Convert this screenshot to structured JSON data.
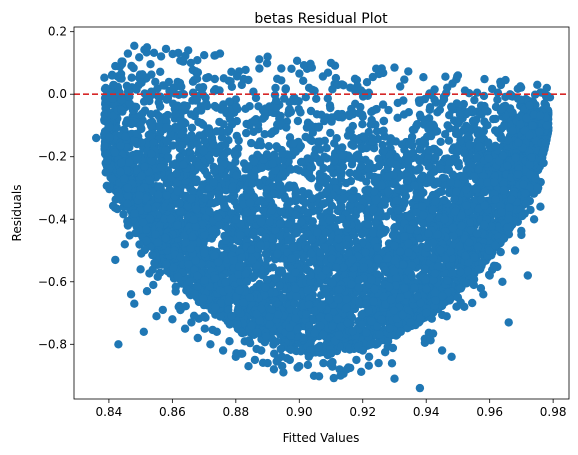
{
  "chart_data": {
    "type": "scatter",
    "title": "betas Residual Plot",
    "xlabel": "Fitted Values",
    "ylabel": "Residuals",
    "xlim": [
      0.829,
      0.985
    ],
    "ylim": [
      -0.975,
      0.215
    ],
    "xticks": [
      0.84,
      0.86,
      0.88,
      0.9,
      0.92,
      0.94,
      0.96,
      0.98
    ],
    "xtick_labels": [
      "0.84",
      "0.86",
      "0.88",
      "0.90",
      "0.92",
      "0.94",
      "0.96",
      "0.98"
    ],
    "yticks": [
      0.2,
      0.0,
      -0.2,
      -0.4,
      -0.6,
      -0.8
    ],
    "ytick_labels": [
      "0.2",
      "0.0",
      "−0.2",
      "−0.4",
      "−0.6",
      "−0.8"
    ],
    "grid": false,
    "legend": null,
    "reference_line": {
      "y": 0.0,
      "color": "#d62728",
      "style": "dashed"
    },
    "marker_color": "#1f77b4",
    "upper_envelope": [
      [
        0.837,
        0.06
      ],
      [
        0.843,
        0.1
      ],
      [
        0.85,
        0.148
      ],
      [
        0.86,
        0.14
      ],
      [
        0.9,
        0.11
      ],
      [
        0.94,
        0.07
      ],
      [
        0.97,
        0.035
      ],
      [
        0.978,
        0.02
      ]
    ],
    "series": [
      {
        "values": [
          [
            0.836,
            -0.14
          ],
          [
            0.839,
            0.02
          ],
          [
            0.841,
            0.06
          ],
          [
            0.842,
            0.09
          ],
          [
            0.844,
            0.05
          ],
          [
            0.846,
            0.13
          ],
          [
            0.848,
            0.155
          ],
          [
            0.852,
            0.15
          ],
          [
            0.858,
            0.145
          ],
          [
            0.865,
            0.14
          ],
          [
            0.875,
            0.13
          ],
          [
            0.89,
            0.12
          ],
          [
            0.91,
            0.1
          ],
          [
            0.93,
            0.085
          ],
          [
            0.95,
            0.06
          ],
          [
            0.965,
            0.045
          ],
          [
            0.975,
            0.03
          ],
          [
            0.978,
            0.02
          ],
          [
            0.979,
            -0.01
          ],
          [
            0.839,
            -0.25
          ],
          [
            0.841,
            -0.27
          ],
          [
            0.842,
            -0.53
          ],
          [
            0.843,
            -0.8
          ],
          [
            0.845,
            -0.48
          ],
          [
            0.846,
            -0.42
          ],
          [
            0.846,
            -0.3
          ],
          [
            0.847,
            -0.64
          ],
          [
            0.848,
            -0.67
          ],
          [
            0.85,
            -0.56
          ],
          [
            0.851,
            -0.76
          ],
          [
            0.852,
            -0.63
          ],
          [
            0.854,
            -0.61
          ],
          [
            0.855,
            -0.71
          ],
          [
            0.857,
            -0.69
          ],
          [
            0.86,
            -0.72
          ],
          [
            0.862,
            -0.68
          ],
          [
            0.864,
            -0.75
          ],
          [
            0.866,
            -0.73
          ],
          [
            0.868,
            -0.78
          ],
          [
            0.87,
            -0.71
          ],
          [
            0.872,
            -0.8
          ],
          [
            0.874,
            -0.76
          ],
          [
            0.876,
            -0.82
          ],
          [
            0.878,
            -0.79
          ],
          [
            0.88,
            -0.84
          ],
          [
            0.882,
            -0.83
          ],
          [
            0.884,
            -0.87
          ],
          [
            0.886,
            -0.85
          ],
          [
            0.888,
            -0.82
          ],
          [
            0.89,
            -0.86
          ],
          [
            0.892,
            -0.88
          ],
          [
            0.895,
            -0.89
          ],
          [
            0.897,
            -0.85
          ],
          [
            0.9,
            -0.87
          ],
          [
            0.903,
            -0.84
          ],
          [
            0.906,
            -0.81
          ],
          [
            0.91,
            -0.83
          ],
          [
            0.913,
            -0.9
          ],
          [
            0.915,
            -0.88
          ],
          [
            0.918,
            -0.85
          ],
          [
            0.92,
            -0.82
          ],
          [
            0.922,
            -0.84
          ],
          [
            0.925,
            -0.86
          ],
          [
            0.928,
            -0.79
          ],
          [
            0.93,
            -0.91
          ],
          [
            0.932,
            -0.76
          ],
          [
            0.935,
            -0.73
          ],
          [
            0.938,
            -0.94
          ],
          [
            0.94,
            -0.7
          ],
          [
            0.943,
            -0.66
          ],
          [
            0.945,
            -0.82
          ],
          [
            0.948,
            -0.84
          ],
          [
            0.95,
            -0.65
          ],
          [
            0.952,
            -0.68
          ],
          [
            0.955,
            -0.61
          ],
          [
            0.958,
            -0.64
          ],
          [
            0.96,
            -0.58
          ],
          [
            0.962,
            -0.55
          ],
          [
            0.964,
            -0.6
          ],
          [
            0.966,
            -0.73
          ],
          [
            0.968,
            -0.5
          ],
          [
            0.97,
            -0.45
          ],
          [
            0.972,
            -0.58
          ],
          [
            0.974,
            -0.4
          ],
          [
            0.975,
            -0.3
          ],
          [
            0.976,
            -0.36
          ],
          [
            0.977,
            -0.18
          ],
          [
            0.978,
            -0.1
          ],
          [
            0.977,
            -0.22
          ]
        ]
      }
    ]
  }
}
